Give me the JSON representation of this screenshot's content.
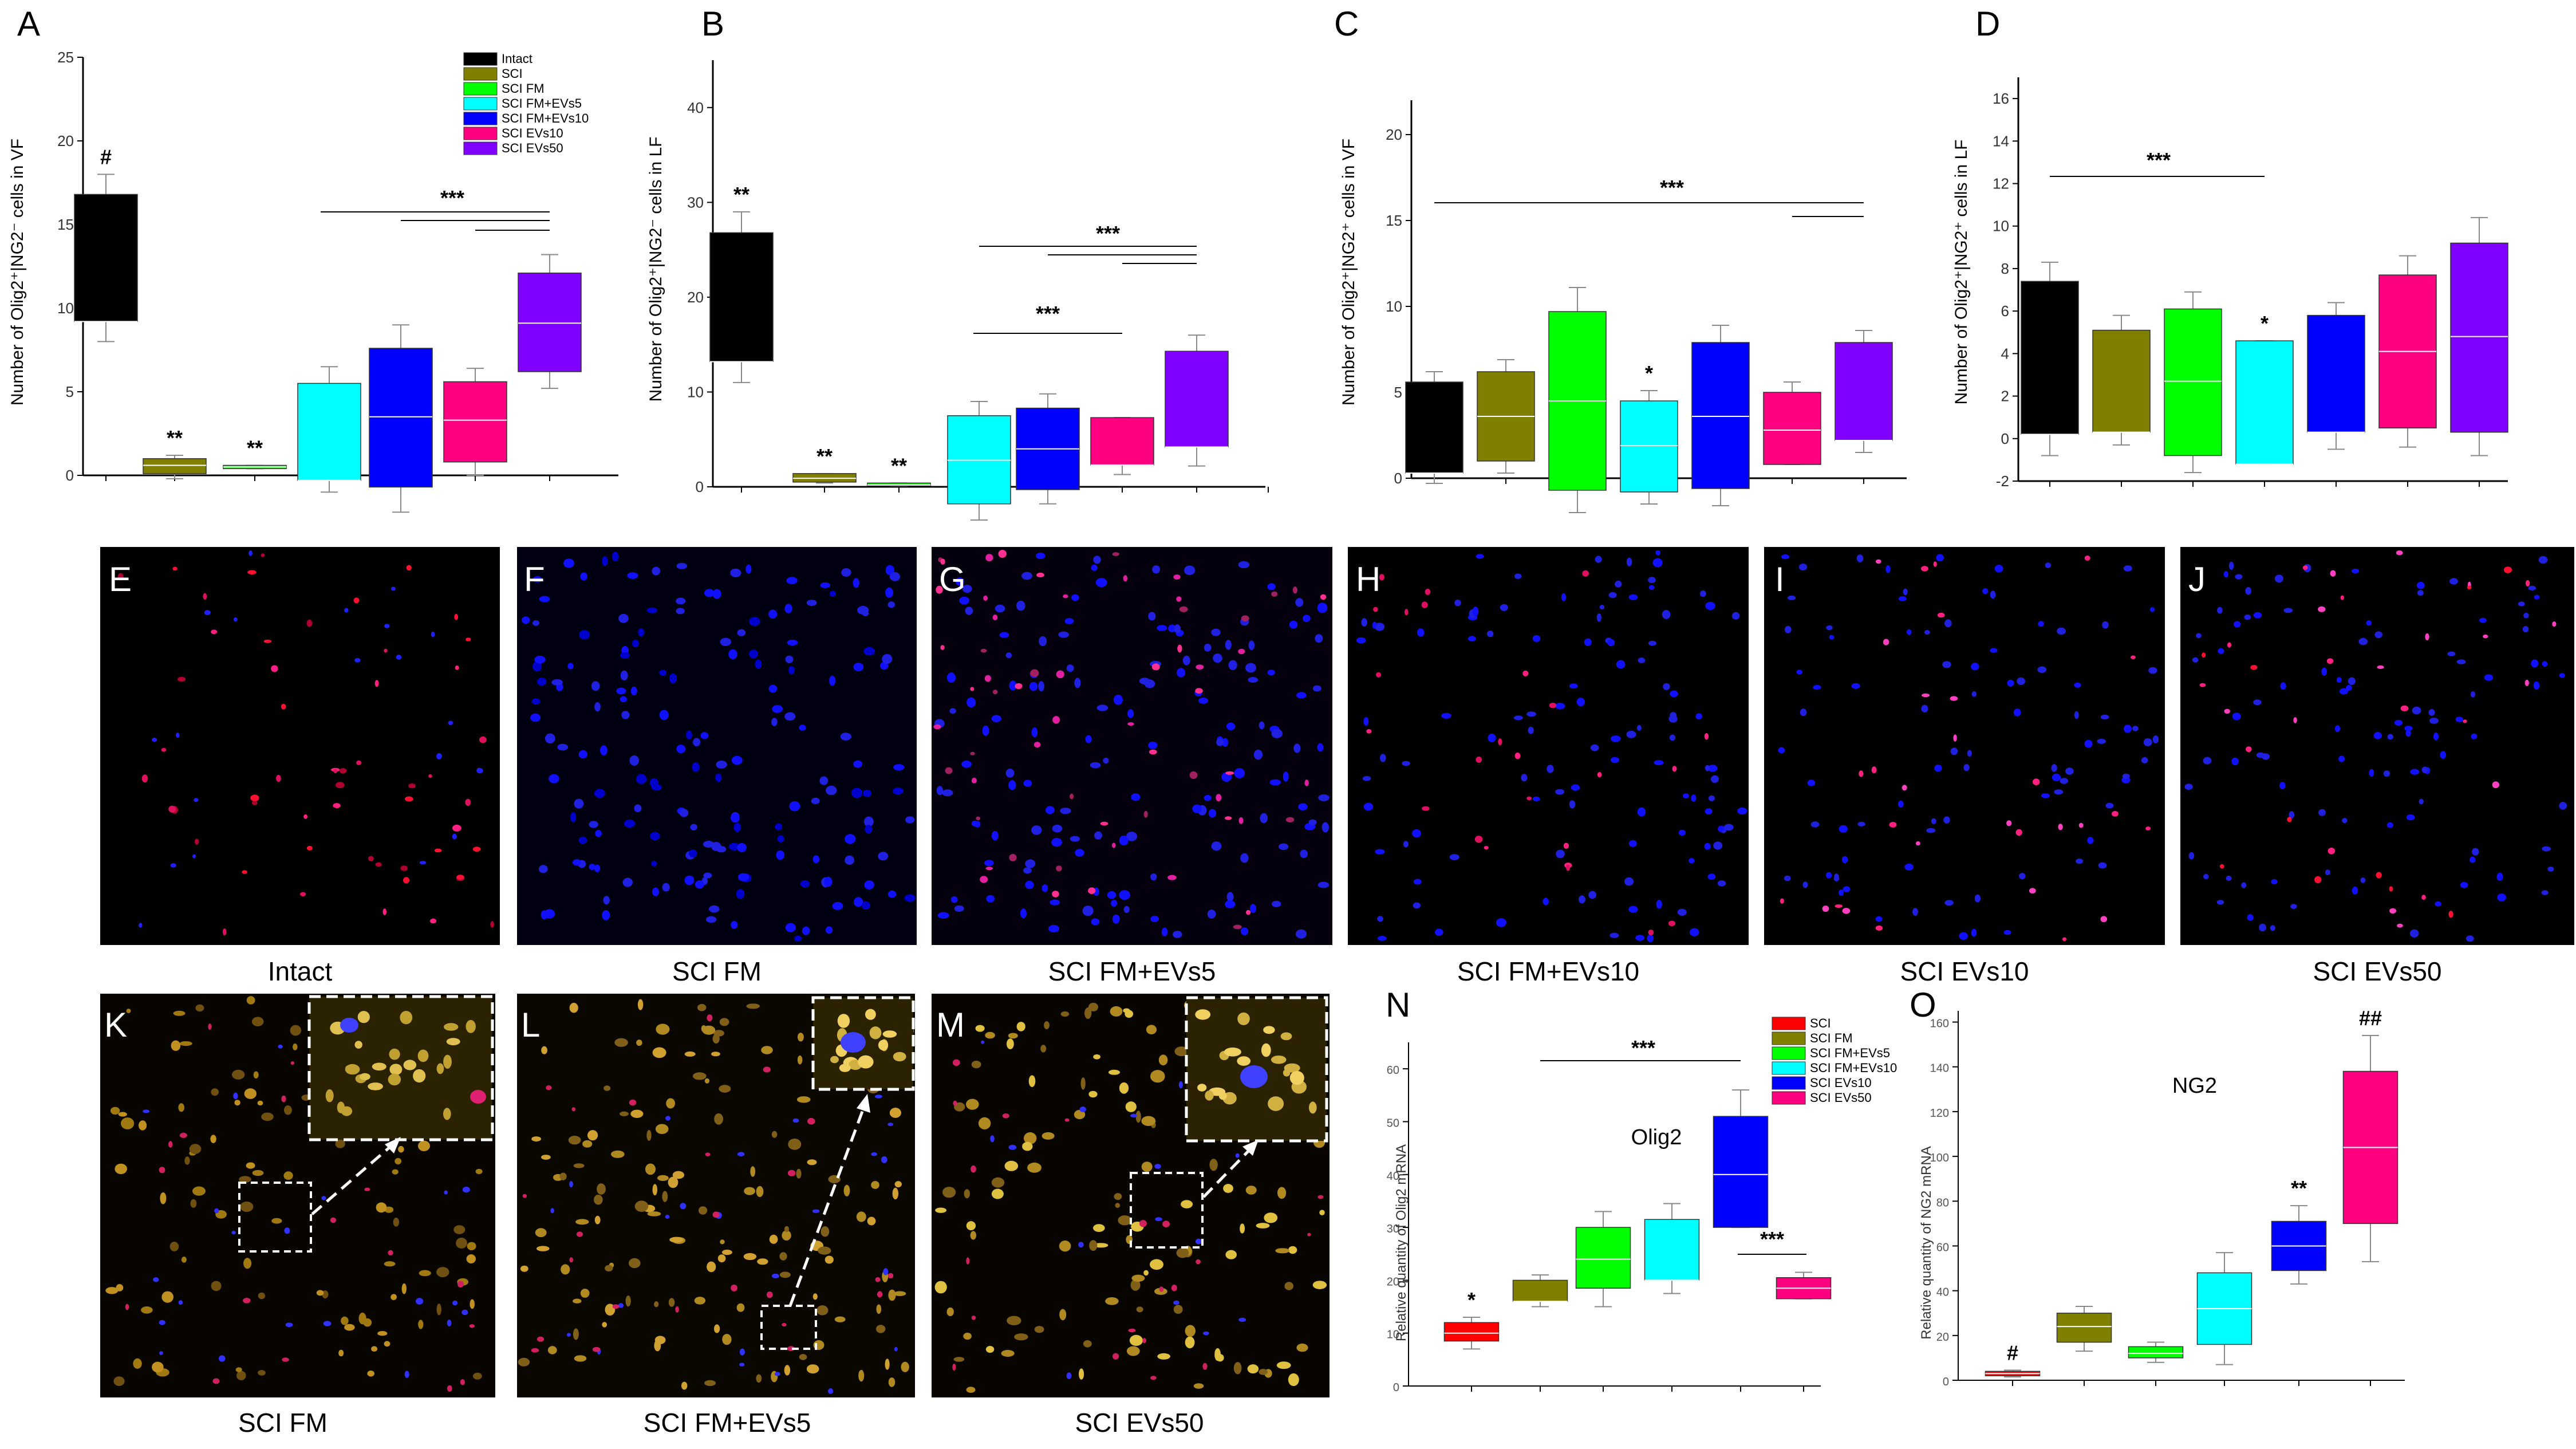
{
  "chart_data": [
    {
      "panel": "A",
      "type": "box",
      "ylabel": "Number of Olig2+|NG2- cells in VF",
      "ylim": [
        0,
        25
      ],
      "yticks": [
        0,
        5,
        10,
        15,
        20,
        25
      ],
      "groups": [
        {
          "name": "Intact",
          "color": "#000000",
          "q1": 9.2,
          "median": 9.2,
          "q3": 16.8,
          "lo": 8,
          "hi": 18,
          "sig": "#"
        },
        {
          "name": "SCI",
          "color": "#808000",
          "q1": 0.1,
          "median": 0.6,
          "q3": 1.0,
          "lo": -0.2,
          "hi": 1.2,
          "sig": "**"
        },
        {
          "name": "SCI FM",
          "color": "#00ff00",
          "q1": 0.4,
          "median": 0.5,
          "q3": 0.6,
          "lo": 0.4,
          "hi": 0.6,
          "sig": "**"
        },
        {
          "name": "SCI FM+EVs5",
          "color": "#00ffff",
          "q1": -0.3,
          "median": -0.3,
          "q3": 5.5,
          "lo": -1,
          "hi": 6.5,
          "sig": ""
        },
        {
          "name": "SCI FM+EVs10",
          "color": "#0000ff",
          "q1": -0.7,
          "median": 3.5,
          "q3": 7.6,
          "lo": -2.2,
          "hi": 9,
          "sig": ""
        },
        {
          "name": "SCI EVs10",
          "color": "#ff0080",
          "q1": 0.8,
          "median": 3.3,
          "q3": 5.6,
          "lo": 0,
          "hi": 6.4,
          "sig": ""
        },
        {
          "name": "SCI EVs50",
          "color": "#8000ff",
          "q1": 6.2,
          "median": 9.1,
          "q3": 12.1,
          "lo": 5.2,
          "hi": 13.2,
          "sig": ""
        }
      ],
      "bracket_sig": "***"
    },
    {
      "panel": "B",
      "type": "box",
      "ylabel": "Number of Olig2+|NG2- cells in LF",
      "ylim": [
        0,
        45
      ],
      "yticks": [
        0,
        10,
        20,
        30,
        40
      ],
      "groups": [
        {
          "name": "Intact",
          "color": "#000000",
          "q1": 13.2,
          "median": 13.2,
          "q3": 26.8,
          "lo": 11,
          "hi": 29,
          "sig": "**"
        },
        {
          "name": "SCI",
          "color": "#808000",
          "q1": 0.5,
          "median": 0.9,
          "q3": 1.4,
          "lo": 0.4,
          "hi": 1.4,
          "sig": "**"
        },
        {
          "name": "SCI FM",
          "color": "#00ff00",
          "q1": 0.1,
          "median": 0.2,
          "q3": 0.4,
          "lo": 0.1,
          "hi": 0.4,
          "sig": "**"
        },
        {
          "name": "SCI FM+EVs5",
          "color": "#00ffff",
          "q1": -1.8,
          "median": 2.8,
          "q3": 7.5,
          "lo": -3.5,
          "hi": 9,
          "sig": ""
        },
        {
          "name": "SCI FM+EVs10",
          "color": "#0000ff",
          "q1": -0.3,
          "median": 4,
          "q3": 8.3,
          "lo": -1.8,
          "hi": 9.8,
          "sig": ""
        },
        {
          "name": "SCI EVs10",
          "color": "#ff0080",
          "q1": 2.3,
          "median": 2.3,
          "q3": 7.3,
          "lo": 1.3,
          "hi": 7.3,
          "sig": ""
        },
        {
          "name": "SCI EVs50",
          "color": "#8000ff",
          "q1": 4.2,
          "median": 4.2,
          "q3": 14.3,
          "lo": 2.2,
          "hi": 16
        },
        {
          "name": "",
          "color": "none"
        }
      ],
      "bracket_sig": "***"
    },
    {
      "panel": "C",
      "type": "box",
      "ylabel": "Number of Olig2+|NG2+ cells in VF",
      "ylim": [
        0,
        22
      ],
      "yticks": [
        0,
        5,
        10,
        15,
        20
      ],
      "groups": [
        {
          "name": "Intact",
          "color": "#000000",
          "q1": 0.3,
          "median": 0.3,
          "q3": 5.6,
          "lo": -0.3,
          "hi": 6.2,
          "sig": ""
        },
        {
          "name": "SCI",
          "color": "#808000",
          "q1": 1,
          "median": 3.6,
          "q3": 6.2,
          "lo": 0.3,
          "hi": 6.9,
          "sig": ""
        },
        {
          "name": "SCI FM",
          "color": "#00ff00",
          "q1": -0.7,
          "median": 4.5,
          "q3": 9.7,
          "lo": -2,
          "hi": 11.1,
          "sig": ""
        },
        {
          "name": "SCI FM+EVs5",
          "color": "#00ffff",
          "q1": -0.8,
          "median": 1.9,
          "q3": 4.5,
          "lo": -1.5,
          "hi": 5.1,
          "sig": "*"
        },
        {
          "name": "SCI FM+EVs10",
          "color": "#0000ff",
          "q1": -0.6,
          "median": 3.6,
          "q3": 7.9,
          "lo": -1.6,
          "hi": 8.9,
          "sig": ""
        },
        {
          "name": "SCI EVs10",
          "color": "#ff0080",
          "q1": 0.8,
          "median": 2.8,
          "q3": 5,
          "lo": 0.8,
          "hi": 5.6,
          "sig": ""
        },
        {
          "name": "SCI EVs50",
          "color": "#8000ff",
          "q1": 2.2,
          "median": 2.2,
          "q3": 7.9,
          "lo": 1.5,
          "hi": 8.6,
          "sig": ""
        }
      ],
      "bracket_sig": "***"
    },
    {
      "panel": "D",
      "type": "box",
      "ylabel": "Number of Olig2+|NG2+ cells in LF",
      "ylim": [
        -2,
        17
      ],
      "yticks": [
        -2,
        0,
        2,
        4,
        6,
        8,
        10,
        12,
        14,
        16
      ],
      "groups": [
        {
          "name": "Intact",
          "color": "#000000",
          "q1": 0.2,
          "median": 0.2,
          "q3": 7.4,
          "lo": -0.8,
          "hi": 8.3,
          "sig": ""
        },
        {
          "name": "SCI",
          "color": "#808000",
          "q1": 0.3,
          "median": 0.3,
          "q3": 5.1,
          "lo": -0.3,
          "hi": 5.8,
          "sig": ""
        },
        {
          "name": "SCI FM",
          "color": "#00ff00",
          "q1": -0.8,
          "median": 2.7,
          "q3": 6.1,
          "lo": -1.6,
          "hi": 6.9,
          "sig": ""
        },
        {
          "name": "SCI FM+EVs5",
          "color": "#00ffff",
          "q1": -1.2,
          "median": -1.2,
          "q3": 4.6,
          "lo": -1.2,
          "hi": 4.6,
          "sig": "*"
        },
        {
          "name": "SCI FM+EVs10",
          "color": "#0000ff",
          "q1": 0.3,
          "median": 0.3,
          "q3": 5.8,
          "lo": -0.5,
          "hi": 6.4,
          "sig": ""
        },
        {
          "name": "SCI EVs10",
          "color": "#ff0080",
          "q1": 0.5,
          "median": 4.1,
          "q3": 7.7,
          "lo": -0.4,
          "hi": 8.6,
          "sig": ""
        },
        {
          "name": "SCI EVs50",
          "color": "#8000ff",
          "q1": 0.3,
          "median": 4.8,
          "q3": 9.2,
          "lo": -0.8,
          "hi": 10.4,
          "sig": ""
        }
      ],
      "bracket_sig": "***"
    },
    {
      "panel": "N",
      "type": "box",
      "gene": "Olig2",
      "ylabel": "Relative quantity of Olig2 mRNA",
      "ylim": [
        0,
        65
      ],
      "yticks": [
        0,
        10,
        20,
        30,
        40,
        50,
        60
      ],
      "groups": [
        {
          "name": "SCI",
          "color": "#ff0000",
          "q1": 8.5,
          "median": 10,
          "q3": 12,
          "lo": 7,
          "hi": 13,
          "sig": "*"
        },
        {
          "name": "SCI FM",
          "color": "#808000",
          "q1": 16,
          "median": 16,
          "q3": 20,
          "lo": 15,
          "hi": 21,
          "sig": ""
        },
        {
          "name": "SCI FM+EVs5",
          "color": "#00ff00",
          "q1": 18.5,
          "median": 24,
          "q3": 30,
          "lo": 15,
          "hi": 33,
          "sig": ""
        },
        {
          "name": "SCI FM+EVs10",
          "color": "#00ffff",
          "q1": 20,
          "median": 20,
          "q3": 31.5,
          "lo": 17.5,
          "hi": 34.5,
          "sig": ""
        },
        {
          "name": "SCI EVs10",
          "color": "#0000ff",
          "q1": 30,
          "median": 40,
          "q3": 51,
          "lo": 30,
          "hi": 56,
          "sig": ""
        },
        {
          "name": "SCI EVs50",
          "color": "#ff0080",
          "q1": 16.5,
          "median": 18.5,
          "q3": 20.5,
          "lo": 16.5,
          "hi": 21.5,
          "sig": ""
        }
      ],
      "bracket_sig": [
        "***",
        "***"
      ]
    },
    {
      "panel": "O",
      "type": "box",
      "gene": "NG2",
      "ylabel": "Relative quantity of NG2 mRNA",
      "ylim": [
        0,
        165
      ],
      "yticks": [
        0,
        20,
        40,
        60,
        80,
        100,
        120,
        140,
        160
      ],
      "groups": [
        {
          "name": "SCI",
          "color": "#ff0000",
          "q1": 2,
          "median": 3,
          "q3": 4,
          "lo": 1.5,
          "hi": 4.5,
          "sig": "#"
        },
        {
          "name": "SCI FM",
          "color": "#808000",
          "q1": 17,
          "median": 24,
          "q3": 30,
          "lo": 13,
          "hi": 33,
          "sig": ""
        },
        {
          "name": "SCI FM+EVs5",
          "color": "#00ff00",
          "q1": 10,
          "median": 12,
          "q3": 15,
          "lo": 8,
          "hi": 17,
          "sig": ""
        },
        {
          "name": "SCI FM+EVs10",
          "color": "#00ffff",
          "q1": 16,
          "median": 32,
          "q3": 48,
          "lo": 7,
          "hi": 57,
          "sig": ""
        },
        {
          "name": "SCI EVs10",
          "color": "#0000ff",
          "q1": 49,
          "median": 60,
          "q3": 71,
          "lo": 43,
          "hi": 78,
          "sig": "**"
        },
        {
          "name": "SCI EVs50",
          "color": "#ff0080",
          "q1": 70,
          "median": 104,
          "q3": 138,
          "lo": 53,
          "hi": 154,
          "sig": "##"
        }
      ]
    }
  ],
  "panel_letters": {
    "A": "A",
    "B": "B",
    "C": "C",
    "D": "D",
    "E": "E",
    "F": "F",
    "G": "G",
    "H": "H",
    "I": "I",
    "J": "J",
    "K": "K",
    "L": "L",
    "M": "M",
    "N": "N",
    "O": "O"
  },
  "legend_main": [
    "Intact",
    "SCI",
    "SCI FM",
    "SCI FM+EVs5",
    "SCI FM+EVs10",
    "SCI EVs10",
    "SCI EVs50"
  ],
  "legend_main_colors": [
    "#000000",
    "#808000",
    "#00ff00",
    "#00ffff",
    "#0000ff",
    "#ff0080",
    "#8000ff"
  ],
  "legend_n": [
    "SCI",
    "SCI FM",
    "SCI FM+EVs5",
    "SCI FM+EVs10",
    "SCI EVs10",
    "SCI EVs50"
  ],
  "legend_n_colors": [
    "#ff0000",
    "#808000",
    "#00ff00",
    "#00ffff",
    "#0000ff",
    "#ff0080"
  ],
  "micro_captions": {
    "E": "Intact",
    "F": "SCI FM",
    "G": "SCI FM+EVs5",
    "H": "SCI FM+EVs10",
    "I": "SCI EVs10",
    "J": "SCI EVs50",
    "K": "SCI FM",
    "L": "SCI FM+EVs5",
    "M": "SCI EVs50"
  },
  "ylabels": {
    "A": "Number of Olig2⁺|NG2⁻ cells in VF",
    "B": "Number of Olig2⁺|NG2⁻ cells in LF",
    "C": "Number of Olig2⁺|NG2⁺ cells in VF",
    "D": "Number of Olig2⁺|NG2⁺ cells in LF",
    "N": "Relative quantity of Olig2 mRNA",
    "O": "Relative quantity of NG2 mRNA"
  },
  "gene_labels": {
    "N": "Olig2",
    "O": "NG2"
  }
}
